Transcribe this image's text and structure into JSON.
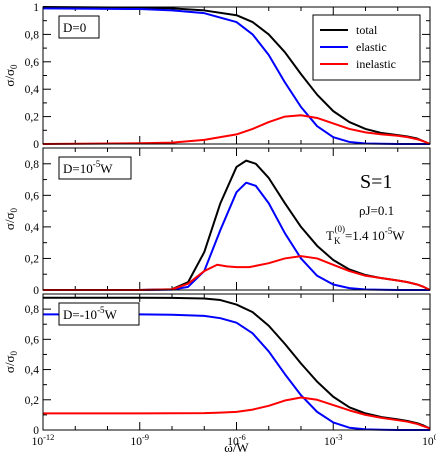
{
  "chart_data": {
    "type": "line",
    "x_scale": "log",
    "xlim": [
      1e-12,
      1
    ],
    "xlabel": "ω/W",
    "x_ticks": [
      {
        "value": 1e-12,
        "base": "10",
        "exp": "-12"
      },
      {
        "value": 1e-09,
        "base": "10",
        "exp": "-9"
      },
      {
        "value": 1e-06,
        "base": "10",
        "exp": "-6"
      },
      {
        "value": 0.001,
        "base": "10",
        "exp": "-3"
      },
      {
        "value": 1,
        "base": "10",
        "exp": "0"
      }
    ],
    "legend": {
      "placement": "top-right of top panel",
      "entries": [
        {
          "label": "total",
          "color": "#000000"
        },
        {
          "label": "elastic",
          "color": "#0000ff"
        },
        {
          "label": "inelastic",
          "color": "#ff0000"
        }
      ]
    },
    "annotations": {
      "spin": "S=1",
      "coupling": "ρJ=0.1",
      "tk_prefix": "T",
      "tk_sub": "K",
      "tk_sup": "(0)",
      "tk_value": "=1.4 10",
      "tk_exp": "-5",
      "tk_unit": "W"
    },
    "panels": [
      {
        "label": "D=0",
        "ylabel": "σ/σ",
        "ylabel_sub": "0",
        "ylim": [
          0,
          1.0
        ],
        "yticks": [
          0,
          0.2,
          0.4,
          0.6,
          0.8,
          1
        ],
        "ytick_labels": [
          "0",
          "0,2",
          "0,4",
          "0,6",
          "0,8",
          "1"
        ],
        "series": [
          {
            "name": "total",
            "color": "#000000",
            "points": [
              [
                -12,
                1.0
              ],
              [
                -9,
                0.995
              ],
              [
                -8,
                0.99
              ],
              [
                -7,
                0.975
              ],
              [
                -6,
                0.94
              ],
              [
                -5.5,
                0.89
              ],
              [
                -5,
                0.8
              ],
              [
                -4.5,
                0.67
              ],
              [
                -4,
                0.51
              ],
              [
                -3.5,
                0.36
              ],
              [
                -3,
                0.24
              ],
              [
                -2.5,
                0.16
              ],
              [
                -2,
                0.11
              ],
              [
                -1.5,
                0.08
              ],
              [
                -1,
                0.065
              ],
              [
                -0.7,
                0.055
              ],
              [
                -0.4,
                0.04
              ],
              [
                -0.2,
                0.02
              ],
              [
                0,
                0.0
              ]
            ]
          },
          {
            "name": "elastic",
            "color": "#0000ff",
            "points": [
              [
                -12,
                0.99
              ],
              [
                -9,
                0.985
              ],
              [
                -8,
                0.975
              ],
              [
                -7,
                0.955
              ],
              [
                -6,
                0.89
              ],
              [
                -5.5,
                0.8
              ],
              [
                -5,
                0.65
              ],
              [
                -4.5,
                0.45
              ],
              [
                -4,
                0.27
              ],
              [
                -3.5,
                0.13
              ],
              [
                -3,
                0.05
              ],
              [
                -2.5,
                0.015
              ],
              [
                -2,
                0.004
              ],
              [
                -1,
                0.0
              ],
              [
                0,
                0.0
              ]
            ]
          },
          {
            "name": "inelastic",
            "color": "#ff0000",
            "points": [
              [
                -12,
                0.0
              ],
              [
                -9,
                0.005
              ],
              [
                -8,
                0.01
              ],
              [
                -7,
                0.03
              ],
              [
                -6,
                0.07
              ],
              [
                -5.5,
                0.11
              ],
              [
                -5,
                0.16
              ],
              [
                -4.5,
                0.2
              ],
              [
                -4,
                0.21
              ],
              [
                -3.5,
                0.19
              ],
              [
                -3,
                0.15
              ],
              [
                -2.5,
                0.11
              ],
              [
                -2,
                0.085
              ],
              [
                -1.5,
                0.07
              ],
              [
                -1,
                0.06
              ],
              [
                -0.7,
                0.05
              ],
              [
                -0.4,
                0.035
              ],
              [
                -0.2,
                0.02
              ],
              [
                0,
                0.0
              ]
            ]
          }
        ]
      },
      {
        "label": "D=10",
        "label_exp": "-5",
        "label_unit": "W",
        "ylabel": "σ/σ",
        "ylabel_sub": "0",
        "ylim": [
          0,
          0.9
        ],
        "yticks": [
          0,
          0.2,
          0.4,
          0.6,
          0.8
        ],
        "ytick_labels": [
          "0",
          "0,2",
          "0,4",
          "0,6",
          "0,8"
        ],
        "series": [
          {
            "name": "total",
            "color": "#000000",
            "points": [
              [
                -12,
                0.0
              ],
              [
                -9,
                0.0
              ],
              [
                -8,
                0.005
              ],
              [
                -7.5,
                0.05
              ],
              [
                -7,
                0.24
              ],
              [
                -6.5,
                0.55
              ],
              [
                -6,
                0.78
              ],
              [
                -5.7,
                0.82
              ],
              [
                -5.4,
                0.8
              ],
              [
                -5,
                0.71
              ],
              [
                -4.5,
                0.55
              ],
              [
                -4,
                0.4
              ],
              [
                -3.5,
                0.28
              ],
              [
                -3,
                0.19
              ],
              [
                -2.5,
                0.13
              ],
              [
                -2,
                0.095
              ],
              [
                -1.5,
                0.075
              ],
              [
                -1,
                0.06
              ],
              [
                -0.7,
                0.05
              ],
              [
                -0.4,
                0.035
              ],
              [
                -0.2,
                0.02
              ],
              [
                0,
                0.0
              ]
            ]
          },
          {
            "name": "elastic",
            "color": "#0000ff",
            "points": [
              [
                -12,
                0.0
              ],
              [
                -9,
                0.0
              ],
              [
                -8,
                0.002
              ],
              [
                -7.5,
                0.02
              ],
              [
                -7,
                0.12
              ],
              [
                -6.5,
                0.38
              ],
              [
                -6,
                0.62
              ],
              [
                -5.7,
                0.68
              ],
              [
                -5.4,
                0.66
              ],
              [
                -5,
                0.55
              ],
              [
                -4.5,
                0.36
              ],
              [
                -4,
                0.2
              ],
              [
                -3.5,
                0.09
              ],
              [
                -3,
                0.035
              ],
              [
                -2.5,
                0.012
              ],
              [
                -2,
                0.003
              ],
              [
                -1,
                0.0
              ],
              [
                0,
                0.0
              ]
            ]
          },
          {
            "name": "inelastic",
            "color": "#ff0000",
            "points": [
              [
                -12,
                0.0
              ],
              [
                -9,
                0.0
              ],
              [
                -8,
                0.004
              ],
              [
                -7.5,
                0.04
              ],
              [
                -7,
                0.12
              ],
              [
                -6.6,
                0.16
              ],
              [
                -6.3,
                0.15
              ],
              [
                -6,
                0.145
              ],
              [
                -5.6,
                0.145
              ],
              [
                -5,
                0.17
              ],
              [
                -4.5,
                0.2
              ],
              [
                -4,
                0.215
              ],
              [
                -3.5,
                0.2
              ],
              [
                -3,
                0.16
              ],
              [
                -2.5,
                0.12
              ],
              [
                -2,
                0.09
              ],
              [
                -1.5,
                0.075
              ],
              [
                -1,
                0.06
              ],
              [
                -0.7,
                0.05
              ],
              [
                -0.4,
                0.035
              ],
              [
                -0.2,
                0.02
              ],
              [
                0,
                0.0
              ]
            ]
          }
        ]
      },
      {
        "label": "D=-10",
        "label_exp": "-5",
        "label_unit": "W",
        "ylabel": "σ/σ",
        "ylabel_sub": "0",
        "ylim": [
          0,
          0.9
        ],
        "yticks": [
          0,
          0.2,
          0.4,
          0.6,
          0.8
        ],
        "ytick_labels": [
          "0",
          "0,2",
          "0,4",
          "0,6",
          "0,8"
        ],
        "series": [
          {
            "name": "total",
            "color": "#000000",
            "points": [
              [
                -12,
                0.875
              ],
              [
                -9,
                0.875
              ],
              [
                -8,
                0.874
              ],
              [
                -7,
                0.87
              ],
              [
                -6.5,
                0.86
              ],
              [
                -6,
                0.83
              ],
              [
                -5.5,
                0.78
              ],
              [
                -5,
                0.69
              ],
              [
                -4.5,
                0.57
              ],
              [
                -4,
                0.44
              ],
              [
                -3.5,
                0.32
              ],
              [
                -3,
                0.22
              ],
              [
                -2.5,
                0.15
              ],
              [
                -2,
                0.11
              ],
              [
                -1.5,
                0.085
              ],
              [
                -1,
                0.07
              ],
              [
                -0.7,
                0.06
              ],
              [
                -0.4,
                0.045
              ],
              [
                -0.2,
                0.03
              ],
              [
                0,
                0.01
              ]
            ]
          },
          {
            "name": "elastic",
            "color": "#0000ff",
            "points": [
              [
                -12,
                0.765
              ],
              [
                -9,
                0.765
              ],
              [
                -8,
                0.763
              ],
              [
                -7,
                0.755
              ],
              [
                -6.5,
                0.74
              ],
              [
                -6,
                0.71
              ],
              [
                -5.5,
                0.64
              ],
              [
                -5,
                0.52
              ],
              [
                -4.5,
                0.37
              ],
              [
                -4,
                0.23
              ],
              [
                -3.5,
                0.12
              ],
              [
                -3,
                0.05
              ],
              [
                -2.5,
                0.015
              ],
              [
                -2,
                0.004
              ],
              [
                -1,
                0.0
              ],
              [
                0,
                0.0
              ]
            ]
          },
          {
            "name": "inelastic",
            "color": "#ff0000",
            "points": [
              [
                -12,
                0.11
              ],
              [
                -9,
                0.11
              ],
              [
                -8,
                0.111
              ],
              [
                -7,
                0.112
              ],
              [
                -6.5,
                0.115
              ],
              [
                -6,
                0.12
              ],
              [
                -5.5,
                0.135
              ],
              [
                -5,
                0.16
              ],
              [
                -4.5,
                0.195
              ],
              [
                -4,
                0.215
              ],
              [
                -3.5,
                0.2
              ],
              [
                -3,
                0.165
              ],
              [
                -2.5,
                0.13
              ],
              [
                -2,
                0.1
              ],
              [
                -1.5,
                0.08
              ],
              [
                -1,
                0.065
              ],
              [
                -0.7,
                0.055
              ],
              [
                -0.4,
                0.04
              ],
              [
                -0.2,
                0.025
              ],
              [
                0,
                0.01
              ]
            ]
          }
        ]
      }
    ]
  }
}
